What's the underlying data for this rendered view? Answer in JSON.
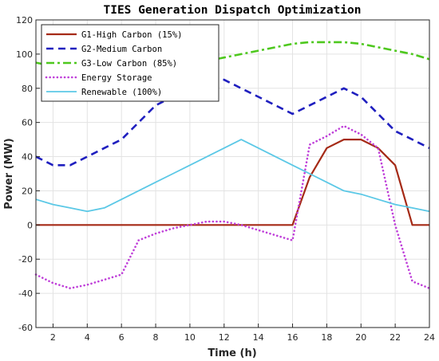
{
  "chart_data": {
    "type": "line",
    "title": "TIES Generation Dispatch Optimization",
    "xlabel": "Time (h)",
    "ylabel": "Power (MW)",
    "xlim": [
      1,
      24
    ],
    "ylim": [
      -60,
      120
    ],
    "xticks": [
      2,
      4,
      6,
      8,
      10,
      12,
      14,
      16,
      18,
      20,
      22,
      24
    ],
    "yticks": [
      -60,
      -40,
      -20,
      0,
      20,
      40,
      60,
      80,
      100,
      120
    ],
    "grid": true,
    "legend_position": "top-left",
    "series": [
      {
        "name": "G1-High Carbon (15%)",
        "color": "#a52a16",
        "style": "solid",
        "x": [
          1,
          2,
          3,
          4,
          5,
          6,
          7,
          8,
          9,
          10,
          11,
          12,
          13,
          14,
          15,
          16,
          17,
          18,
          19,
          20,
          21,
          22,
          23,
          24
        ],
        "values": [
          0,
          0,
          0,
          0,
          0,
          0,
          0,
          0,
          0,
          0,
          0,
          0,
          0,
          0,
          0,
          0,
          28,
          45,
          50,
          50,
          45,
          35,
          0,
          0
        ]
      },
      {
        "name": "G2-Medium Carbon",
        "color": "#1f1fbf",
        "style": "dashed",
        "x": [
          1,
          2,
          3,
          4,
          5,
          6,
          7,
          8,
          9,
          10,
          11,
          12,
          13,
          14,
          15,
          16,
          17,
          18,
          19,
          20,
          21,
          22,
          23,
          24
        ],
        "values": [
          40,
          35,
          35,
          40,
          45,
          50,
          60,
          70,
          75,
          80,
          85,
          85,
          80,
          75,
          70,
          65,
          70,
          75,
          80,
          75,
          65,
          55,
          50,
          45
        ]
      },
      {
        "name": "G3-Low Carbon (85%)",
        "color": "#4ec81e",
        "style": "dash-dot",
        "x": [
          1,
          2,
          3,
          4,
          5,
          6,
          7,
          8,
          9,
          10,
          11,
          12,
          13,
          14,
          15,
          16,
          17,
          18,
          19,
          20,
          21,
          22,
          23,
          24
        ],
        "values": [
          95,
          93,
          90,
          89,
          89,
          89,
          90,
          91,
          93,
          94,
          96,
          98,
          100,
          102,
          104,
          106,
          107,
          107,
          107,
          106,
          104,
          102,
          100,
          97
        ]
      },
      {
        "name": "Energy Storage",
        "color": "#bf3fd9",
        "style": "dotted",
        "x": [
          1,
          2,
          3,
          4,
          5,
          6,
          7,
          8,
          9,
          10,
          11,
          12,
          13,
          14,
          15,
          16,
          17,
          18,
          19,
          20,
          21,
          22,
          23,
          24
        ],
        "values": [
          -29,
          -34,
          -37,
          -35,
          -32,
          -29,
          -9,
          -5,
          -2,
          0,
          2,
          2,
          0,
          -3,
          -6,
          -9,
          47,
          52,
          58,
          53,
          45,
          0,
          -33,
          -37
        ]
      },
      {
        "name": "Renewable (100%)",
        "color": "#5bc8e6",
        "style": "solid",
        "x": [
          1,
          2,
          3,
          4,
          5,
          6,
          7,
          8,
          9,
          10,
          11,
          12,
          13,
          14,
          15,
          16,
          17,
          18,
          19,
          20,
          21,
          22,
          23,
          24
        ],
        "values": [
          15,
          12,
          10,
          8,
          10,
          15,
          20,
          25,
          30,
          35,
          40,
          45,
          50,
          45,
          40,
          35,
          30,
          25,
          20,
          18,
          15,
          12,
          10,
          8
        ]
      }
    ]
  }
}
